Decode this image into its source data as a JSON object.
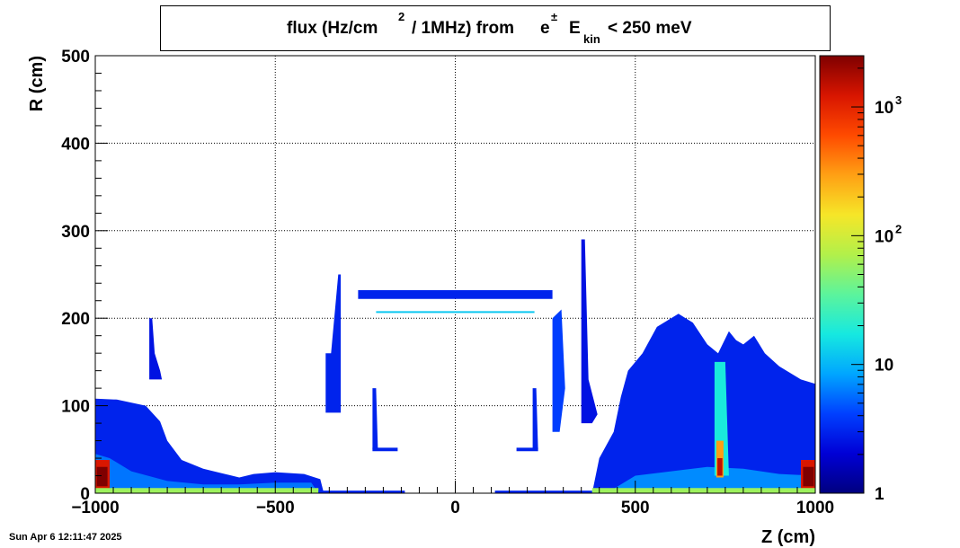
{
  "title": {
    "flux": "flux (Hz/cm",
    "sq": "2",
    "per": "/ 1MHz) from",
    "particle": "e",
    "pm": "±",
    "ekin": "E",
    "kin_sub": "kin",
    "cut": "< 250 meV"
  },
  "footer": "Sun Apr  6 12:11:47 2025",
  "chart_data": {
    "type": "heatmap",
    "xlabel": "Z (cm)",
    "ylabel": "R (cm)",
    "xlim": [
      -1000,
      1000
    ],
    "ylim": [
      0,
      500
    ],
    "x_ticks": [
      {
        "v": -1000,
        "label": "−1000"
      },
      {
        "v": -500,
        "label": "−500"
      },
      {
        "v": 0,
        "label": "0"
      },
      {
        "v": 500,
        "label": "500"
      },
      {
        "v": 1000,
        "label": "1000"
      }
    ],
    "y_ticks": [
      {
        "v": 0,
        "label": "0"
      },
      {
        "v": 100,
        "label": "100"
      },
      {
        "v": 200,
        "label": "200"
      },
      {
        "v": 300,
        "label": "300"
      },
      {
        "v": 400,
        "label": "400"
      },
      {
        "v": 500,
        "label": "500"
      }
    ],
    "grid": true,
    "zscale": "log",
    "zlim": [
      1,
      2500
    ],
    "colorbar": {
      "ticks": [
        {
          "v": 1,
          "base": "1",
          "exp": ""
        },
        {
          "v": 10,
          "base": "10",
          "exp": ""
        },
        {
          "v": 100,
          "base": "10",
          "exp": "2"
        },
        {
          "v": 1000,
          "base": "10",
          "exp": "3"
        }
      ],
      "palette": [
        "#00007f",
        "#0000d6",
        "#0040ff",
        "#00a6ff",
        "#16e9e0",
        "#5cf49c",
        "#b2f04a",
        "#f6e628",
        "#ffa014",
        "#ff4a00",
        "#d81500",
        "#7f0000"
      ]
    },
    "regions": [
      {
        "name": "left-endcap",
        "poly": [
          [
            -1000,
            0
          ],
          [
            -1000,
            108
          ],
          [
            -940,
            107
          ],
          [
            -860,
            100
          ],
          [
            -820,
            82
          ],
          [
            -800,
            60
          ],
          [
            -760,
            38
          ],
          [
            -700,
            28
          ],
          [
            -640,
            22
          ],
          [
            -600,
            18
          ],
          [
            -560,
            22
          ],
          [
            -500,
            24
          ],
          [
            -420,
            22
          ],
          [
            -375,
            16
          ],
          [
            -365,
            0
          ]
        ],
        "z": 3
      },
      {
        "name": "left-endcap-inner",
        "poly": [
          [
            -1000,
            0
          ],
          [
            -1000,
            45
          ],
          [
            -960,
            40
          ],
          [
            -900,
            25
          ],
          [
            -800,
            14
          ],
          [
            -700,
            10
          ],
          [
            -600,
            10
          ],
          [
            -500,
            12
          ],
          [
            -400,
            12
          ],
          [
            -380,
            0
          ]
        ],
        "z": 6
      },
      {
        "name": "left-hot-spot",
        "poly": [
          [
            -1000,
            2
          ],
          [
            -1000,
            38
          ],
          [
            -960,
            38
          ],
          [
            -960,
            2
          ]
        ],
        "z": 1200
      },
      {
        "name": "left-hot-core",
        "poly": [
          [
            -996,
            8
          ],
          [
            -996,
            30
          ],
          [
            -966,
            30
          ],
          [
            -966,
            8
          ]
        ],
        "z": 2500
      },
      {
        "name": "left-spike",
        "poly": [
          [
            -850,
            130
          ],
          [
            -850,
            200
          ],
          [
            -842,
            200
          ],
          [
            -835,
            160
          ],
          [
            -820,
            140
          ],
          [
            -815,
            130
          ]
        ],
        "z": 2.5
      },
      {
        "name": "barrel-top",
        "poly": [
          [
            -270,
            232
          ],
          [
            -270,
            222
          ],
          [
            270,
            222
          ],
          [
            270,
            232
          ]
        ],
        "z": 3
      },
      {
        "name": "barrel-line",
        "poly": [
          [
            -220,
            208
          ],
          [
            -220,
            206
          ],
          [
            220,
            206
          ],
          [
            220,
            208
          ]
        ],
        "z": 12
      },
      {
        "name": "barrel-left-wall",
        "poly": [
          [
            -360,
            92
          ],
          [
            -360,
            160
          ],
          [
            -345,
            160
          ],
          [
            -325,
            250
          ],
          [
            -318,
            250
          ],
          [
            -318,
            92
          ]
        ],
        "z": 3
      },
      {
        "name": "barrel-right-wall",
        "poly": [
          [
            270,
            70
          ],
          [
            270,
            200
          ],
          [
            295,
            210
          ],
          [
            305,
            120
          ],
          [
            290,
            70
          ]
        ],
        "z": 4
      },
      {
        "name": "barrel-right-spike",
        "poly": [
          [
            350,
            80
          ],
          [
            350,
            290
          ],
          [
            360,
            290
          ],
          [
            370,
            130
          ],
          [
            395,
            90
          ],
          [
            380,
            80
          ]
        ],
        "z": 2.5
      },
      {
        "name": "inner-left-tab",
        "poly": [
          [
            -230,
            50
          ],
          [
            -230,
            120
          ],
          [
            -220,
            120
          ],
          [
            -215,
            50
          ]
        ],
        "z": 3
      },
      {
        "name": "inner-right-tab",
        "poly": [
          [
            215,
            50
          ],
          [
            215,
            120
          ],
          [
            225,
            120
          ],
          [
            230,
            50
          ]
        ],
        "z": 3
      },
      {
        "name": "inner-left-foot",
        "poly": [
          [
            -230,
            48
          ],
          [
            -230,
            52
          ],
          [
            -160,
            52
          ],
          [
            -160,
            48
          ]
        ],
        "z": 3
      },
      {
        "name": "inner-right-foot",
        "poly": [
          [
            170,
            48
          ],
          [
            170,
            52
          ],
          [
            230,
            52
          ],
          [
            230,
            48
          ]
        ],
        "z": 3
      },
      {
        "name": "right-endcap",
        "poly": [
          [
            380,
            0
          ],
          [
            400,
            40
          ],
          [
            440,
            70
          ],
          [
            460,
            110
          ],
          [
            480,
            140
          ],
          [
            520,
            160
          ],
          [
            560,
            190
          ],
          [
            620,
            205
          ],
          [
            660,
            195
          ],
          [
            700,
            170
          ],
          [
            730,
            160
          ],
          [
            760,
            185
          ],
          [
            780,
            175
          ],
          [
            800,
            170
          ],
          [
            830,
            180
          ],
          [
            860,
            160
          ],
          [
            900,
            145
          ],
          [
            960,
            130
          ],
          [
            1000,
            125
          ],
          [
            1000,
            0
          ]
        ],
        "z": 3
      },
      {
        "name": "right-endcap-inner",
        "poly": [
          [
            420,
            0
          ],
          [
            500,
            20
          ],
          [
            600,
            25
          ],
          [
            700,
            30
          ],
          [
            800,
            28
          ],
          [
            900,
            22
          ],
          [
            1000,
            20
          ],
          [
            1000,
            0
          ]
        ],
        "z": 7
      },
      {
        "name": "right-column",
        "poly": [
          [
            720,
            20
          ],
          [
            720,
            150
          ],
          [
            750,
            150
          ],
          [
            760,
            20
          ]
        ],
        "z": 18
      },
      {
        "name": "right-column-hot",
        "poly": [
          [
            725,
            18
          ],
          [
            725,
            60
          ],
          [
            745,
            60
          ],
          [
            745,
            18
          ]
        ],
        "z": 300
      },
      {
        "name": "right-column-core",
        "poly": [
          [
            728,
            20
          ],
          [
            728,
            40
          ],
          [
            742,
            40
          ],
          [
            742,
            20
          ]
        ],
        "z": 1500
      },
      {
        "name": "right-hot-spot",
        "poly": [
          [
            960,
            2
          ],
          [
            960,
            38
          ],
          [
            1000,
            38
          ],
          [
            1000,
            2
          ]
        ],
        "z": 1200
      },
      {
        "name": "right-hot-core",
        "poly": [
          [
            966,
            8
          ],
          [
            966,
            30
          ],
          [
            996,
            30
          ],
          [
            996,
            8
          ]
        ],
        "z": 2500
      },
      {
        "name": "floor-strip-left",
        "poly": [
          [
            -1000,
            0
          ],
          [
            -1000,
            6
          ],
          [
            -380,
            6
          ],
          [
            -380,
            0
          ]
        ],
        "z": 60
      },
      {
        "name": "floor-strip-right",
        "poly": [
          [
            380,
            0
          ],
          [
            380,
            6
          ],
          [
            1000,
            6
          ],
          [
            1000,
            0
          ]
        ],
        "z": 60
      },
      {
        "name": "beam-pipe-left",
        "poly": [
          [
            -380,
            0
          ],
          [
            -380,
            3
          ],
          [
            -140,
            3
          ],
          [
            -140,
            0
          ]
        ],
        "z": 3
      },
      {
        "name": "beam-pipe-right",
        "poly": [
          [
            110,
            0
          ],
          [
            110,
            3
          ],
          [
            380,
            3
          ],
          [
            380,
            0
          ]
        ],
        "z": 3
      }
    ]
  }
}
